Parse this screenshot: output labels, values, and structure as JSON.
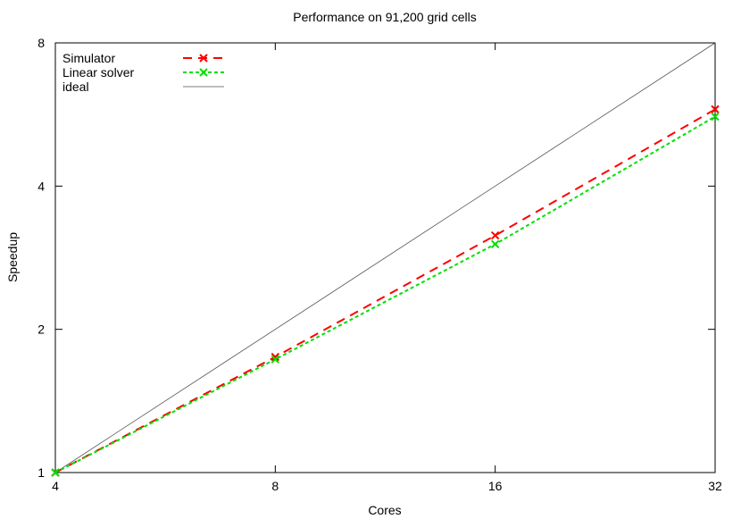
{
  "chart_data": {
    "type": "line",
    "title": "Performance on 91,200 grid cells",
    "xlabel": "Cores",
    "ylabel": "Speedup",
    "x_scale": "log2",
    "y_scale": "log2",
    "xlim": [
      4,
      32
    ],
    "ylim": [
      1,
      8
    ],
    "x_ticks": [
      "4",
      "8",
      "16",
      "32"
    ],
    "y_ticks": [
      "1",
      "2",
      "4",
      "8"
    ],
    "legend_position": "top-left",
    "grid": false,
    "series": [
      {
        "name": "Simulator",
        "color": "#ff0000",
        "style": "dashed",
        "marker": "x",
        "x": [
          4,
          8,
          16,
          32
        ],
        "y": [
          1.0,
          1.75,
          3.15,
          5.8
        ]
      },
      {
        "name": "Linear solver",
        "color": "#00e000",
        "style": "dotted",
        "marker": "x",
        "x": [
          4,
          8,
          16,
          32
        ],
        "y": [
          1.0,
          1.73,
          3.02,
          5.6
        ]
      },
      {
        "name": "ideal",
        "color": "#555555",
        "style": "solid",
        "marker": "none",
        "x": [
          4,
          32
        ],
        "y": [
          1,
          8
        ]
      }
    ]
  }
}
